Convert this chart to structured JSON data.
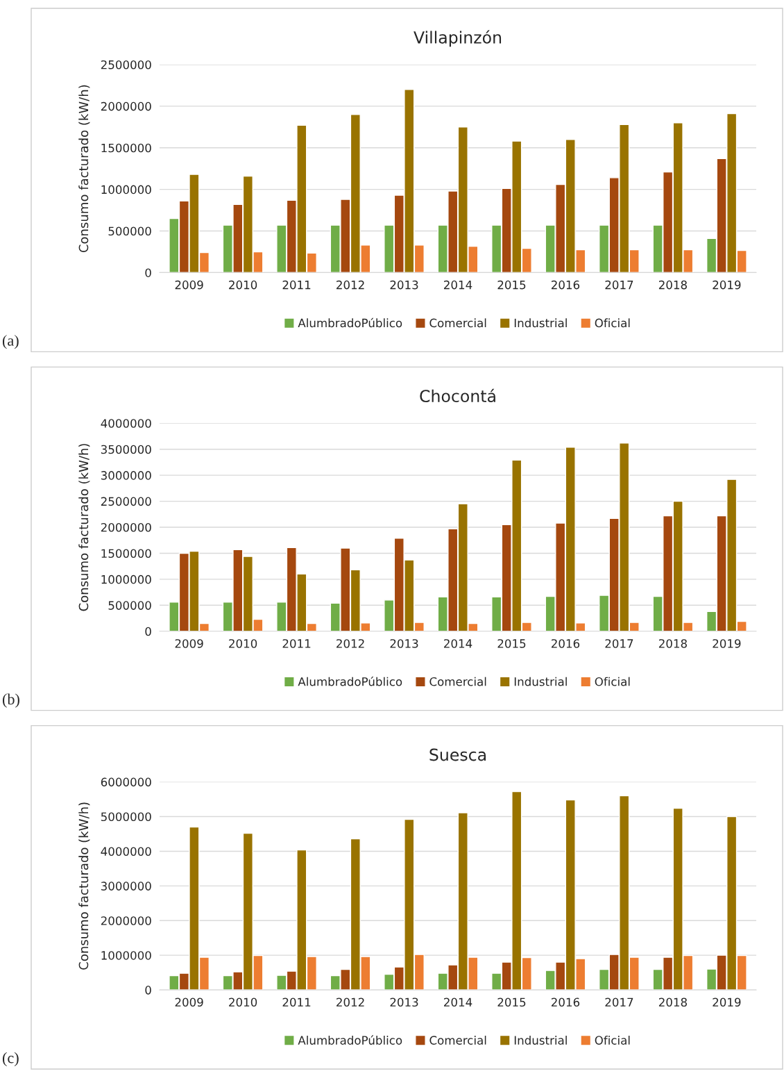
{
  "chart_data": [
    {
      "type": "bar",
      "title": "Villapinzón",
      "ylabel": "Consumo facturado (kW/h)",
      "categories": [
        "2009",
        "2010",
        "2011",
        "2012",
        "2013",
        "2014",
        "2015",
        "2016",
        "2017",
        "2018",
        "2019"
      ],
      "series": [
        {
          "name": "AlumbradoPúblico",
          "color": "#70ad47",
          "values": [
            650000,
            570000,
            570000,
            570000,
            570000,
            570000,
            570000,
            570000,
            570000,
            570000,
            410000
          ]
        },
        {
          "name": "Comercial",
          "color": "#a5480f",
          "values": [
            860000,
            820000,
            870000,
            880000,
            930000,
            980000,
            1010000,
            1060000,
            1140000,
            1210000,
            1370000
          ]
        },
        {
          "name": "Industrial",
          "color": "#997300",
          "values": [
            1180000,
            1160000,
            1770000,
            1900000,
            2200000,
            1750000,
            1580000,
            1600000,
            1780000,
            1800000,
            1910000
          ]
        },
        {
          "name": "Oficial",
          "color": "#ed7d31",
          "values": [
            240000,
            250000,
            235000,
            330000,
            330000,
            315000,
            290000,
            275000,
            275000,
            275000,
            265000
          ]
        }
      ],
      "ylim": [
        0,
        2500000
      ],
      "yticks": [
        0,
        500000,
        1000000,
        1500000,
        2000000,
        2500000
      ],
      "grid": "y",
      "legend": "bottom",
      "annotations": [
        "(a)"
      ]
    },
    {
      "type": "bar",
      "title": "Chocontá",
      "ylabel": "Consumo facturado (kW/h)",
      "categories": [
        "2009",
        "2010",
        "2011",
        "2012",
        "2013",
        "2014",
        "2015",
        "2016",
        "2017",
        "2018",
        "2019"
      ],
      "series": [
        {
          "name": "AlumbradoPúblico",
          "color": "#70ad47",
          "values": [
            560000,
            560000,
            560000,
            540000,
            600000,
            660000,
            660000,
            670000,
            690000,
            670000,
            380000
          ]
        },
        {
          "name": "Comercial",
          "color": "#a5480f",
          "values": [
            1500000,
            1570000,
            1610000,
            1600000,
            1790000,
            1970000,
            2050000,
            2080000,
            2170000,
            2220000,
            2220000
          ]
        },
        {
          "name": "Industrial",
          "color": "#997300",
          "values": [
            1540000,
            1440000,
            1100000,
            1180000,
            1370000,
            2450000,
            3290000,
            3540000,
            3620000,
            2500000,
            2920000
          ]
        },
        {
          "name": "Oficial",
          "color": "#ed7d31",
          "values": [
            150000,
            230000,
            150000,
            160000,
            170000,
            150000,
            170000,
            160000,
            170000,
            170000,
            190000
          ]
        }
      ],
      "ylim": [
        0,
        4000000
      ],
      "yticks": [
        0,
        500000,
        1000000,
        1500000,
        2000000,
        2500000,
        3000000,
        3500000,
        4000000
      ],
      "grid": "y",
      "legend": "bottom",
      "annotations": [
        "(b)"
      ]
    },
    {
      "type": "bar",
      "title": "Suesca",
      "ylabel": "Consumo facturado (kW/h)",
      "categories": [
        "2009",
        "2010",
        "2011",
        "2012",
        "2013",
        "2014",
        "2015",
        "2016",
        "2017",
        "2018",
        "2019"
      ],
      "series": [
        {
          "name": "AlumbradoPúblico",
          "color": "#70ad47",
          "values": [
            410000,
            410000,
            420000,
            410000,
            450000,
            480000,
            480000,
            560000,
            590000,
            590000,
            600000
          ]
        },
        {
          "name": "Comercial",
          "color": "#a5480f",
          "values": [
            480000,
            520000,
            540000,
            590000,
            660000,
            720000,
            800000,
            800000,
            1020000,
            940000,
            1000000
          ]
        },
        {
          "name": "Industrial",
          "color": "#997300",
          "values": [
            4700000,
            4520000,
            4040000,
            4360000,
            4920000,
            5110000,
            5720000,
            5480000,
            5600000,
            5240000,
            5000000
          ]
        },
        {
          "name": "Oficial",
          "color": "#ed7d31",
          "values": [
            940000,
            990000,
            960000,
            960000,
            1020000,
            940000,
            930000,
            900000,
            940000,
            990000,
            990000
          ]
        }
      ],
      "ylim": [
        0,
        6000000
      ],
      "yticks": [
        0,
        1000000,
        2000000,
        3000000,
        4000000,
        5000000,
        6000000
      ],
      "grid": "y",
      "legend": "bottom",
      "annotations": [
        "(c)"
      ]
    }
  ]
}
